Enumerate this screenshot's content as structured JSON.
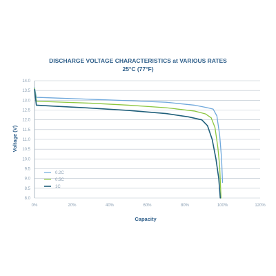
{
  "chart_data": {
    "type": "line",
    "title": "DISCHARGE VOLTAGE CHARACTERISTICS at VARIOUS RATES",
    "subtitle": "25°C (77°F)",
    "xlabel": "Capacity",
    "ylabel": "Voltage (V)",
    "xlim": [
      0,
      120
    ],
    "ylim": [
      8.0,
      14.0
    ],
    "x_ticks": [
      "0%",
      "20%",
      "40%",
      "60%",
      "80%",
      "100%",
      "120%"
    ],
    "y_ticks": [
      "8.0",
      "8.5",
      "9.0",
      "9.5",
      "10.0",
      "10.5",
      "11.0",
      "11.5",
      "12.0",
      "12.5",
      "13.0",
      "13.5",
      "14.0"
    ],
    "grid": true,
    "legend_position": "bottom-left",
    "series": [
      {
        "name": "0.2C",
        "color": "#6fa8dc",
        "points": [
          [
            0,
            13.65
          ],
          [
            1,
            13.15
          ],
          [
            10,
            13.12
          ],
          [
            30,
            13.05
          ],
          [
            50,
            12.98
          ],
          [
            70,
            12.9
          ],
          [
            85,
            12.75
          ],
          [
            92,
            12.62
          ],
          [
            95,
            12.55
          ],
          [
            97,
            12.2
          ],
          [
            98.5,
            11.2
          ],
          [
            99.5,
            10.0
          ],
          [
            100,
            8.8
          ]
        ]
      },
      {
        "name": "0.5C",
        "color": "#8cc63f",
        "points": [
          [
            0,
            13.6
          ],
          [
            1,
            12.95
          ],
          [
            10,
            12.92
          ],
          [
            30,
            12.85
          ],
          [
            50,
            12.75
          ],
          [
            70,
            12.62
          ],
          [
            85,
            12.45
          ],
          [
            91,
            12.3
          ],
          [
            94,
            12.1
          ],
          [
            96,
            11.6
          ],
          [
            97.5,
            10.6
          ],
          [
            98.5,
            9.6
          ],
          [
            99.2,
            8.0
          ]
        ]
      },
      {
        "name": "1C",
        "color": "#1f5f7a",
        "points": [
          [
            0,
            13.55
          ],
          [
            1,
            12.75
          ],
          [
            10,
            12.7
          ],
          [
            30,
            12.6
          ],
          [
            50,
            12.48
          ],
          [
            70,
            12.32
          ],
          [
            82,
            12.15
          ],
          [
            89,
            12.0
          ],
          [
            92,
            11.7
          ],
          [
            94.5,
            11.0
          ],
          [
            96.5,
            10.0
          ],
          [
            98,
            9.0
          ],
          [
            98.8,
            8.0
          ]
        ]
      }
    ]
  }
}
